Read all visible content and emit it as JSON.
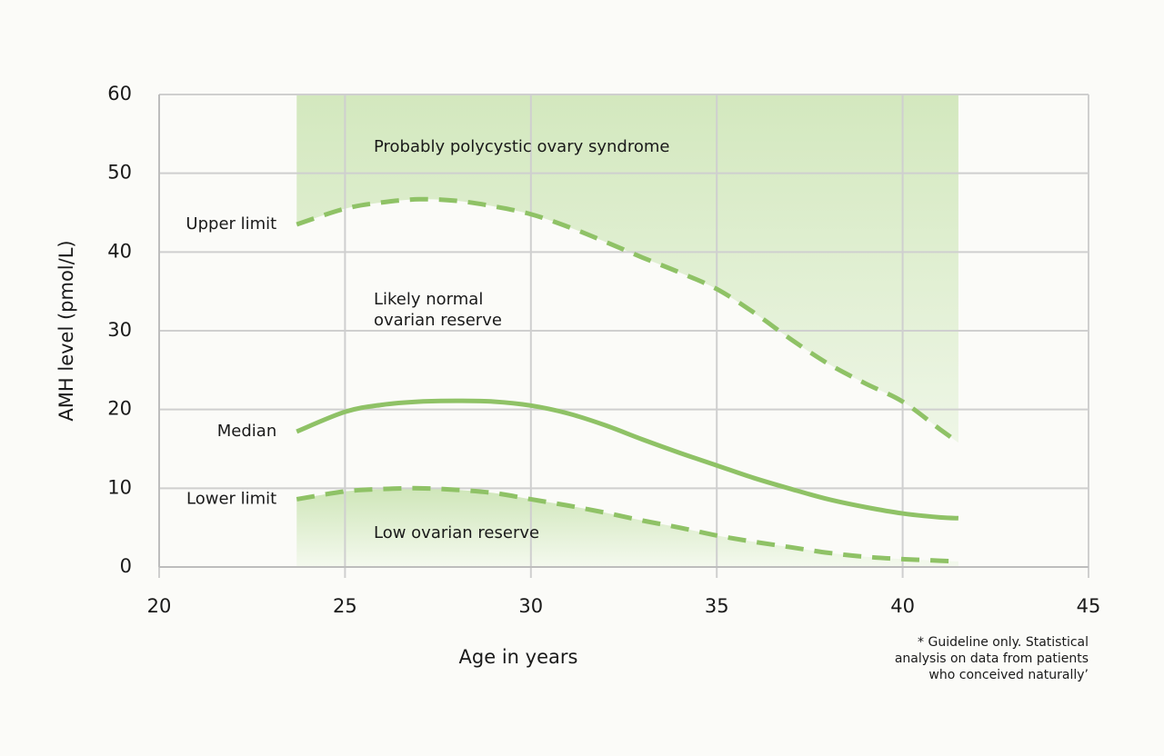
{
  "chart_data": {
    "type": "line",
    "xlabel": "Age in years",
    "ylabel": "AMH level (pmol/L)",
    "x": [
      23.7,
      25,
      26,
      27,
      28,
      29,
      30,
      31,
      32,
      33,
      34,
      35,
      36,
      37,
      38,
      39,
      40,
      41,
      41.5
    ],
    "series": [
      {
        "name": "Upper limit",
        "color": "#8fc266",
        "dashed": true,
        "values": [
          43.5,
          45.5,
          46.3,
          46.7,
          46.5,
          45.8,
          44.8,
          43.2,
          41.3,
          39.3,
          37.4,
          35.3,
          32.3,
          28.9,
          25.8,
          23.3,
          21,
          17.5,
          15.8
        ]
      },
      {
        "name": "Median",
        "color": "#8fc266",
        "dashed": false,
        "values": [
          17.2,
          19.7,
          20.6,
          21.0,
          21.1,
          21.0,
          20.5,
          19.5,
          18,
          16.2,
          14.5,
          12.9,
          11.3,
          9.9,
          8.6,
          7.6,
          6.8,
          6.3,
          6.2
        ]
      },
      {
        "name": "Lower limit",
        "color": "#8fc266",
        "dashed": true,
        "values": [
          8.6,
          9.6,
          9.9,
          10.0,
          9.8,
          9.4,
          8.6,
          7.8,
          6.9,
          5.9,
          5.0,
          4.0,
          3.2,
          2.5,
          1.8,
          1.3,
          1.0,
          0.8,
          0.7
        ]
      }
    ],
    "annotations": {
      "upper_region": "Probably polycystic ovary syndrome",
      "normal_region": [
        "Likely normal",
        "ovarian reserve"
      ],
      "lower_region": "Low ovarian reserve"
    },
    "footnote": [
      "* Guideline only. Statistical",
      "analysis on data from patients",
      "who conceived naturally’"
    ],
    "xlim": [
      20,
      45
    ],
    "xticks": [
      20,
      25,
      30,
      35,
      40,
      45
    ],
    "ylim": [
      0,
      60
    ],
    "yticks": [
      0,
      10,
      20,
      30,
      40,
      50,
      60
    ],
    "grid": true
  }
}
